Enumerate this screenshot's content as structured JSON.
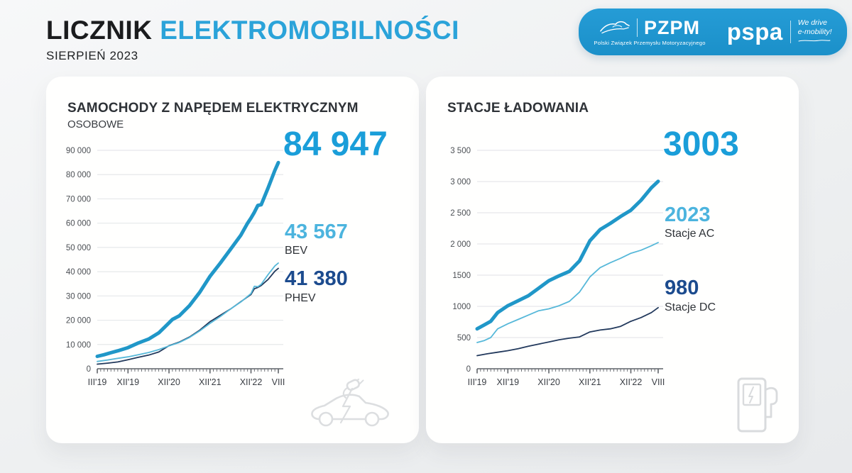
{
  "header": {
    "title_black": "LICZNIK",
    "title_blue": "ELEKTROMOBILNOŚCI",
    "subtitle": "SIERPIEŃ 2023"
  },
  "logos": {
    "pzpm": {
      "name": "PZPM",
      "subtitle": "Polski Związek Przemysłu Motoryzacyjnego"
    },
    "pspa": {
      "name": "pspa",
      "tagline_line1": "We drive",
      "tagline_line2": "e-mobility!"
    }
  },
  "colors": {
    "accent_blue": "#1a9ed9",
    "light_blue": "#4cb4de",
    "navy": "#1c4b8e",
    "thick_line": "#2097c8",
    "logo_bar_blue": "#1f97d2",
    "grid": "#e6e8ea"
  },
  "icons": [
    "pzpm-car-icon",
    "electric-car-icon",
    "charging-station-icon"
  ],
  "cards": {
    "cars": {
      "title": "SAMOCHODY Z NAPĘDEM ELEKTRYCZNYM",
      "subtitle": "OSOBOWE",
      "total_value": "84 947",
      "stats": [
        {
          "value": "43 567",
          "label": "BEV",
          "tone": "light"
        },
        {
          "value": "41 380",
          "label": "PHEV",
          "tone": "dark"
        }
      ]
    },
    "stations": {
      "title": "STACJE ŁADOWANIA",
      "total_value": "3003",
      "stats": [
        {
          "value": "2023",
          "label": "Stacje AC",
          "tone": "light"
        },
        {
          "value": "980",
          "label": "Stacje DC",
          "tone": "dark"
        }
      ]
    }
  },
  "chart_data": [
    {
      "type": "line",
      "title": "Samochody z napędem elektrycznym (osobowe)",
      "x_unit": "months since III 2019",
      "x_range": [
        0,
        53
      ],
      "x_tick_labels": [
        {
          "m": 0,
          "label": "III'19"
        },
        {
          "m": 9,
          "label": "XII'19"
        },
        {
          "m": 21,
          "label": "XII'20"
        },
        {
          "m": 33,
          "label": "XII'21"
        },
        {
          "m": 45,
          "label": "XII'22"
        },
        {
          "m": 53,
          "label": "VIII"
        }
      ],
      "ylim": [
        0,
        90000
      ],
      "grid": true,
      "legend_position": "right-labels",
      "y_ticks": [
        {
          "v": 90000,
          "label": "90 000"
        },
        {
          "v": 80000,
          "label": "80 000"
        },
        {
          "v": 70000,
          "label": "70 000"
        },
        {
          "v": 60000,
          "label": "60 000"
        },
        {
          "v": 50000,
          "label": "50 000"
        },
        {
          "v": 40000,
          "label": "40 000"
        },
        {
          "v": 30000,
          "label": "30 000"
        },
        {
          "v": 20000,
          "label": "20 000"
        },
        {
          "v": 10000,
          "label": "10 000"
        },
        {
          "v": 0,
          "label": "0"
        }
      ],
      "series": [
        {
          "name": "total",
          "final_value": 84947,
          "color": "#2097c8",
          "stroke_width": 5,
          "points": [
            [
              0,
              5100
            ],
            [
              2,
              5800
            ],
            [
              4,
              6600
            ],
            [
              6,
              7400
            ],
            [
              9,
              8700
            ],
            [
              12,
              10600
            ],
            [
              15,
              12200
            ],
            [
              18,
              14800
            ],
            [
              20,
              17500
            ],
            [
              21,
              18900
            ],
            [
              22,
              20300
            ],
            [
              24,
              21800
            ],
            [
              27,
              26000
            ],
            [
              30,
              31500
            ],
            [
              33,
              38100
            ],
            [
              36,
              43500
            ],
            [
              39,
              49200
            ],
            [
              42,
              55000
            ],
            [
              44,
              60000
            ],
            [
              45,
              62100
            ],
            [
              46,
              64500
            ],
            [
              47,
              67300
            ],
            [
              48,
              67600
            ],
            [
              50,
              74500
            ],
            [
              52,
              81800
            ],
            [
              53,
              84947
            ]
          ]
        },
        {
          "name": "BEV",
          "final_value": 43567,
          "color": "#56b8d9",
          "stroke_width": 1.8,
          "points": [
            [
              0,
              3000
            ],
            [
              3,
              3600
            ],
            [
              6,
              4300
            ],
            [
              9,
              4900
            ],
            [
              12,
              5800
            ],
            [
              15,
              6700
            ],
            [
              18,
              7900
            ],
            [
              21,
              9400
            ],
            [
              24,
              10800
            ],
            [
              27,
              12900
            ],
            [
              30,
              15600
            ],
            [
              33,
              18700
            ],
            [
              36,
              21500
            ],
            [
              39,
              24600
            ],
            [
              42,
              27500
            ],
            [
              44,
              29800
            ],
            [
              45,
              31000
            ],
            [
              46,
              34000
            ],
            [
              47,
              33800
            ],
            [
              48,
              34800
            ],
            [
              50,
              38800
            ],
            [
              52,
              42400
            ],
            [
              53,
              43567
            ]
          ]
        },
        {
          "name": "PHEV",
          "final_value": 41380,
          "color": "#22395c",
          "stroke_width": 1.8,
          "points": [
            [
              0,
              1900
            ],
            [
              3,
              2300
            ],
            [
              6,
              2800
            ],
            [
              9,
              3700
            ],
            [
              12,
              4700
            ],
            [
              15,
              5600
            ],
            [
              18,
              6900
            ],
            [
              21,
              9500
            ],
            [
              24,
              11000
            ],
            [
              27,
              13100
            ],
            [
              30,
              15900
            ],
            [
              33,
              19400
            ],
            [
              36,
              22000
            ],
            [
              39,
              24600
            ],
            [
              42,
              27600
            ],
            [
              45,
              30600
            ],
            [
              46,
              33000
            ],
            [
              47,
              33500
            ],
            [
              48,
              34300
            ],
            [
              50,
              36800
            ],
            [
              52,
              40200
            ],
            [
              53,
              41380
            ]
          ]
        }
      ]
    },
    {
      "type": "line",
      "title": "Stacje ładowania",
      "x_unit": "months since III 2019",
      "x_range": [
        0,
        53
      ],
      "x_tick_labels": [
        {
          "m": 0,
          "label": "III'19"
        },
        {
          "m": 9,
          "label": "XII'19"
        },
        {
          "m": 21,
          "label": "XII'20"
        },
        {
          "m": 33,
          "label": "XII'21"
        },
        {
          "m": 45,
          "label": "XII'22"
        },
        {
          "m": 53,
          "label": "VIII"
        }
      ],
      "ylim": [
        0,
        3500
      ],
      "grid": true,
      "legend_position": "right-labels",
      "y_ticks": [
        {
          "v": 3500,
          "label": "3 500"
        },
        {
          "v": 3000,
          "label": "3 000"
        },
        {
          "v": 2500,
          "label": "2 500"
        },
        {
          "v": 2000,
          "label": "2 000"
        },
        {
          "v": 1500,
          "label": "1500"
        },
        {
          "v": 1000,
          "label": "1000"
        },
        {
          "v": 500,
          "label": "500"
        },
        {
          "v": 0,
          "label": "0"
        }
      ],
      "series": [
        {
          "name": "total",
          "final_value": 3003,
          "color": "#2097c8",
          "stroke_width": 5,
          "points": [
            [
              0,
              640
            ],
            [
              2,
              700
            ],
            [
              4,
              760
            ],
            [
              6,
              900
            ],
            [
              9,
              1010
            ],
            [
              12,
              1090
            ],
            [
              15,
              1170
            ],
            [
              18,
              1290
            ],
            [
              21,
              1410
            ],
            [
              24,
              1490
            ],
            [
              27,
              1560
            ],
            [
              30,
              1730
            ],
            [
              33,
              2050
            ],
            [
              36,
              2230
            ],
            [
              39,
              2330
            ],
            [
              42,
              2440
            ],
            [
              45,
              2540
            ],
            [
              48,
              2700
            ],
            [
              51,
              2900
            ],
            [
              53,
              3003
            ]
          ]
        },
        {
          "name": "Stacje AC",
          "final_value": 2023,
          "color": "#56b8d9",
          "stroke_width": 1.8,
          "points": [
            [
              0,
              420
            ],
            [
              2,
              450
            ],
            [
              4,
              500
            ],
            [
              6,
              640
            ],
            [
              9,
              720
            ],
            [
              12,
              790
            ],
            [
              15,
              860
            ],
            [
              18,
              930
            ],
            [
              21,
              960
            ],
            [
              24,
              1010
            ],
            [
              27,
              1080
            ],
            [
              30,
              1230
            ],
            [
              33,
              1470
            ],
            [
              36,
              1620
            ],
            [
              39,
              1700
            ],
            [
              42,
              1770
            ],
            [
              45,
              1850
            ],
            [
              48,
              1900
            ],
            [
              51,
              1970
            ],
            [
              53,
              2023
            ]
          ]
        },
        {
          "name": "Stacje DC",
          "final_value": 980,
          "color": "#22395c",
          "stroke_width": 1.8,
          "points": [
            [
              0,
              210
            ],
            [
              3,
              240
            ],
            [
              6,
              265
            ],
            [
              9,
              290
            ],
            [
              12,
              320
            ],
            [
              15,
              360
            ],
            [
              18,
              395
            ],
            [
              21,
              430
            ],
            [
              24,
              465
            ],
            [
              27,
              490
            ],
            [
              30,
              510
            ],
            [
              33,
              590
            ],
            [
              36,
              620
            ],
            [
              39,
              640
            ],
            [
              42,
              680
            ],
            [
              45,
              760
            ],
            [
              48,
              820
            ],
            [
              51,
              900
            ],
            [
              53,
              980
            ]
          ]
        }
      ]
    }
  ]
}
